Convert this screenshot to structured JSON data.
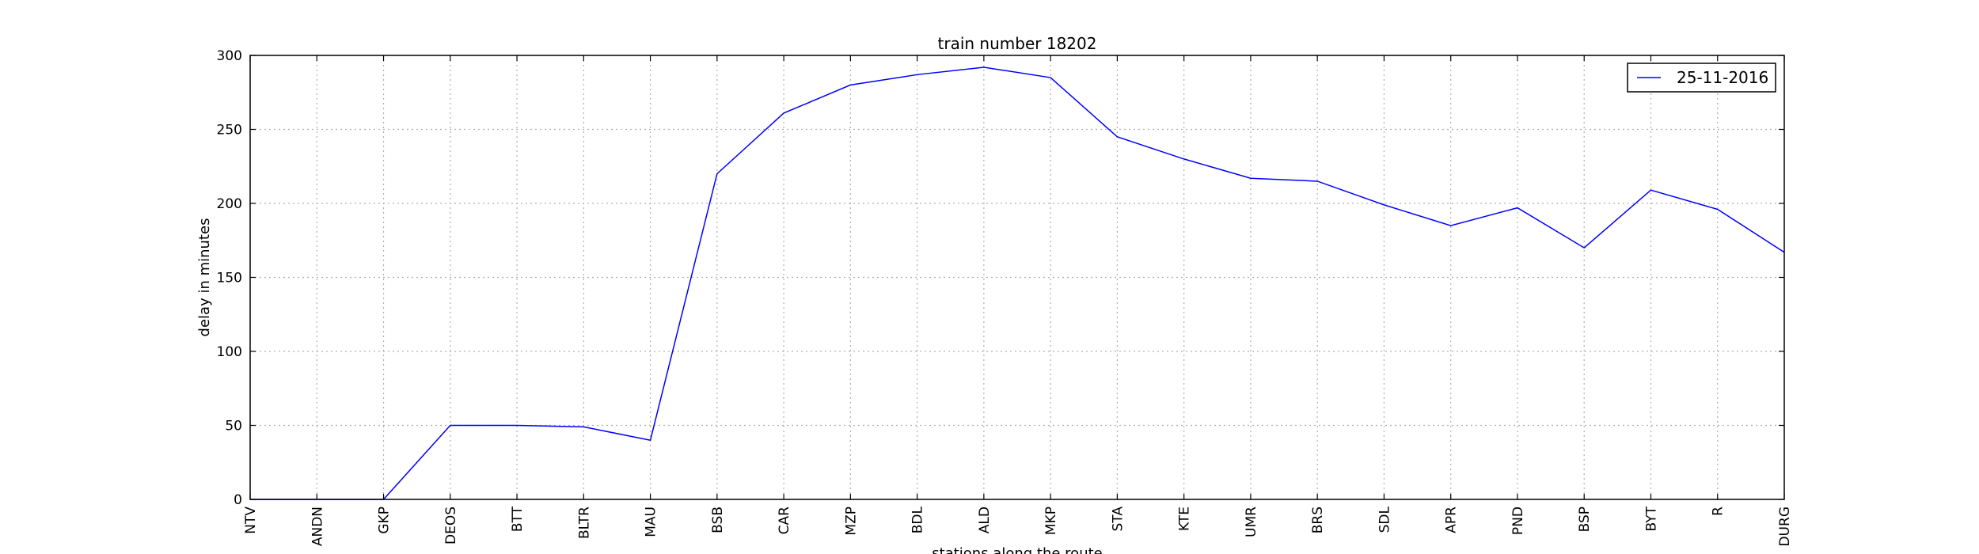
{
  "chart_data": {
    "type": "line",
    "title": "train number 18202",
    "xlabel": "stations along the route",
    "ylabel": "delay in minutes",
    "ylim": [
      0,
      300
    ],
    "yticks": [
      0,
      50,
      100,
      150,
      200,
      250,
      300
    ],
    "grid": true,
    "legend_position": "top-right",
    "categories": [
      "NTV",
      "ANDN",
      "GKP",
      "DEOS",
      "BTT",
      "BLTR",
      "MAU",
      "BSB",
      "CAR",
      "MZP",
      "BDL",
      "ALD",
      "MKP",
      "STA",
      "KTE",
      "UMR",
      "BRS",
      "SDL",
      "APR",
      "PND",
      "BSP",
      "BYT",
      "R",
      "DURG"
    ],
    "series": [
      {
        "name": "25-11-2016",
        "color": "#0000ff",
        "values": [
          0,
          0,
          0,
          50,
          50,
          49,
          40,
          220,
          261,
          280,
          287,
          292,
          285,
          245,
          230,
          217,
          215,
          199,
          185,
          197,
          170,
          209,
          196,
          167
        ]
      }
    ]
  }
}
